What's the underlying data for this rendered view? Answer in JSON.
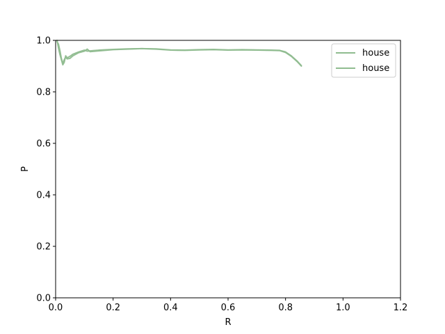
{
  "chart_data": {
    "type": "line",
    "xlabel": "R",
    "ylabel": "P",
    "xlim": [
      0,
      1.2
    ],
    "ylim": [
      0,
      1.0
    ],
    "xticks": [
      "0.0",
      "0.2",
      "0.4",
      "0.6",
      "0.8",
      "1.0",
      "1.2"
    ],
    "yticks": [
      "0.0",
      "0.2",
      "0.4",
      "0.6",
      "0.8",
      "1.0"
    ],
    "grid": false,
    "legend_position": "top-right",
    "series": [
      {
        "name": "house",
        "color": "#8fbc8f",
        "points": [
          [
            0.005,
            1.0
          ],
          [
            0.01,
            0.97
          ],
          [
            0.015,
            0.945
          ],
          [
            0.02,
            0.925
          ],
          [
            0.025,
            0.905
          ],
          [
            0.03,
            0.915
          ],
          [
            0.035,
            0.94
          ],
          [
            0.04,
            0.932
          ],
          [
            0.05,
            0.938
          ],
          [
            0.06,
            0.946
          ],
          [
            0.08,
            0.955
          ],
          [
            0.1,
            0.962
          ],
          [
            0.11,
            0.958
          ],
          [
            0.13,
            0.96
          ],
          [
            0.15,
            0.962
          ],
          [
            0.2,
            0.965
          ],
          [
            0.25,
            0.967
          ],
          [
            0.3,
            0.968
          ],
          [
            0.35,
            0.967
          ],
          [
            0.4,
            0.963
          ],
          [
            0.45,
            0.962
          ],
          [
            0.5,
            0.964
          ],
          [
            0.55,
            0.965
          ],
          [
            0.6,
            0.963
          ],
          [
            0.65,
            0.964
          ],
          [
            0.7,
            0.963
          ],
          [
            0.75,
            0.962
          ],
          [
            0.78,
            0.961
          ],
          [
            0.8,
            0.955
          ],
          [
            0.82,
            0.94
          ],
          [
            0.84,
            0.92
          ],
          [
            0.855,
            0.902
          ]
        ]
      },
      {
        "name": "house",
        "color": "#8fbc8f",
        "points": [
          [
            0.005,
            0.995
          ],
          [
            0.01,
            0.985
          ],
          [
            0.015,
            0.96
          ],
          [
            0.02,
            0.93
          ],
          [
            0.025,
            0.91
          ],
          [
            0.03,
            0.925
          ],
          [
            0.035,
            0.935
          ],
          [
            0.04,
            0.928
          ],
          [
            0.05,
            0.93
          ],
          [
            0.06,
            0.94
          ],
          [
            0.08,
            0.952
          ],
          [
            0.1,
            0.958
          ],
          [
            0.11,
            0.966
          ],
          [
            0.12,
            0.956
          ],
          [
            0.14,
            0.958
          ],
          [
            0.2,
            0.964
          ],
          [
            0.25,
            0.966
          ],
          [
            0.3,
            0.968
          ],
          [
            0.35,
            0.966
          ],
          [
            0.4,
            0.962
          ],
          [
            0.45,
            0.961
          ],
          [
            0.5,
            0.963
          ],
          [
            0.55,
            0.964
          ],
          [
            0.6,
            0.962
          ],
          [
            0.65,
            0.963
          ],
          [
            0.7,
            0.962
          ],
          [
            0.75,
            0.961
          ],
          [
            0.78,
            0.96
          ],
          [
            0.8,
            0.953
          ],
          [
            0.82,
            0.938
          ],
          [
            0.84,
            0.918
          ],
          [
            0.855,
            0.9
          ]
        ]
      }
    ]
  }
}
